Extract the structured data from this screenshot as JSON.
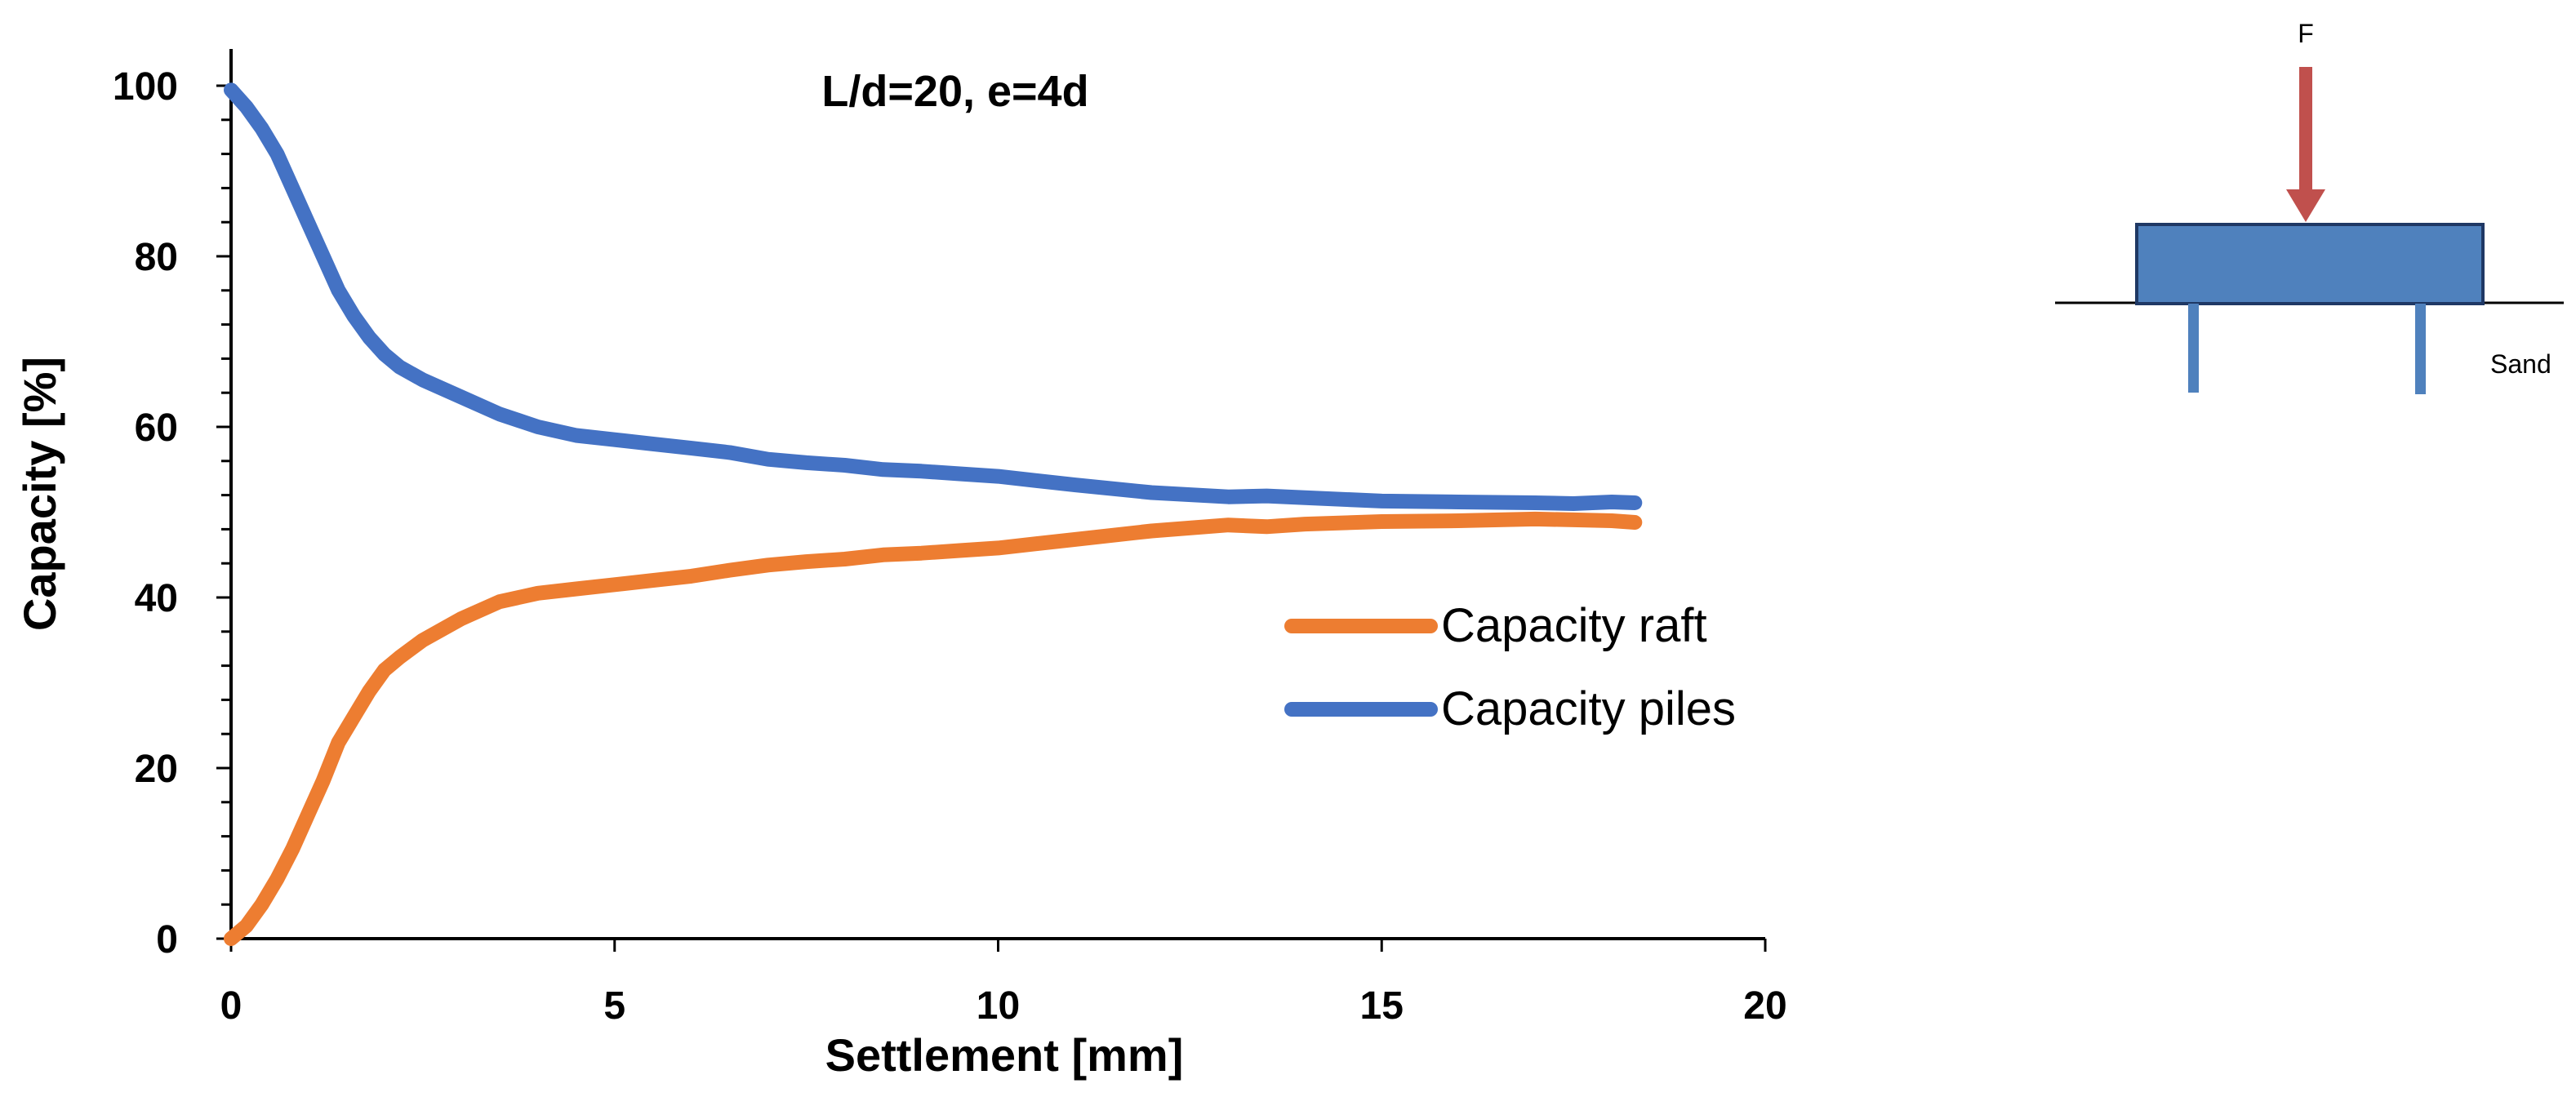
{
  "chart_data": {
    "type": "line",
    "title": "L/d=20, e=4d",
    "xlabel": "Settlement [mm]",
    "ylabel": "Capacity [%]",
    "xlim": [
      0,
      20
    ],
    "ylim": [
      0,
      100
    ],
    "xticks": [
      "0",
      "5",
      "10",
      "15",
      "20"
    ],
    "yticks": [
      "0",
      "20",
      "40",
      "60",
      "80",
      "100"
    ],
    "grid": false,
    "legend_position": "right-center",
    "series": [
      {
        "name": "Capacity raft",
        "color": "#ED7D31",
        "x": [
          0,
          0.2,
          0.4,
          0.6,
          0.8,
          1.0,
          1.2,
          1.4,
          1.6,
          1.8,
          2.0,
          2.2,
          2.5,
          3.0,
          3.5,
          4.0,
          4.5,
          5.0,
          5.5,
          6.0,
          6.5,
          7.0,
          7.5,
          8.0,
          8.5,
          9.0,
          9.5,
          10.0,
          11.0,
          12.0,
          13.0,
          13.5,
          14.0,
          15.0,
          16.0,
          17.0,
          17.5,
          18.0,
          18.3
        ],
        "y": [
          0,
          1.5,
          4,
          7,
          10.5,
          14.5,
          18.5,
          23,
          26,
          29,
          31.5,
          33,
          35,
          37.5,
          39.5,
          40.5,
          41,
          41.5,
          42,
          42.5,
          43.2,
          43.8,
          44.2,
          44.5,
          45,
          45.2,
          45.5,
          45.8,
          46.8,
          47.8,
          48.5,
          48.3,
          48.6,
          48.9,
          49,
          49.2,
          49.1,
          49,
          48.8
        ]
      },
      {
        "name": "Capacity piles",
        "color": "#4472C4",
        "x": [
          0,
          0.2,
          0.4,
          0.6,
          0.8,
          1.0,
          1.2,
          1.4,
          1.6,
          1.8,
          2.0,
          2.2,
          2.5,
          3.0,
          3.5,
          4.0,
          4.5,
          5.0,
          5.5,
          6.0,
          6.5,
          7.0,
          7.5,
          8.0,
          8.5,
          9.0,
          9.5,
          10.0,
          11.0,
          12.0,
          13.0,
          13.5,
          14.0,
          15.0,
          16.0,
          17.0,
          17.5,
          18.0,
          18.3
        ],
        "y": [
          99.5,
          97.5,
          95,
          92,
          88,
          84,
          80,
          76,
          73,
          70.5,
          68.5,
          67,
          65.5,
          63.5,
          61.5,
          60,
          59,
          58.5,
          58,
          57.5,
          57,
          56.2,
          55.8,
          55.5,
          55,
          54.8,
          54.5,
          54.2,
          53.2,
          52.3,
          51.8,
          51.9,
          51.7,
          51.3,
          51.2,
          51.1,
          51,
          51.2,
          51.1
        ]
      }
    ]
  },
  "diagram": {
    "force_label": "F",
    "soil_label": "Sand",
    "force_color": "#C0504D",
    "raft_color": "#4F81BD",
    "raft_border_color": "#1F3864"
  }
}
